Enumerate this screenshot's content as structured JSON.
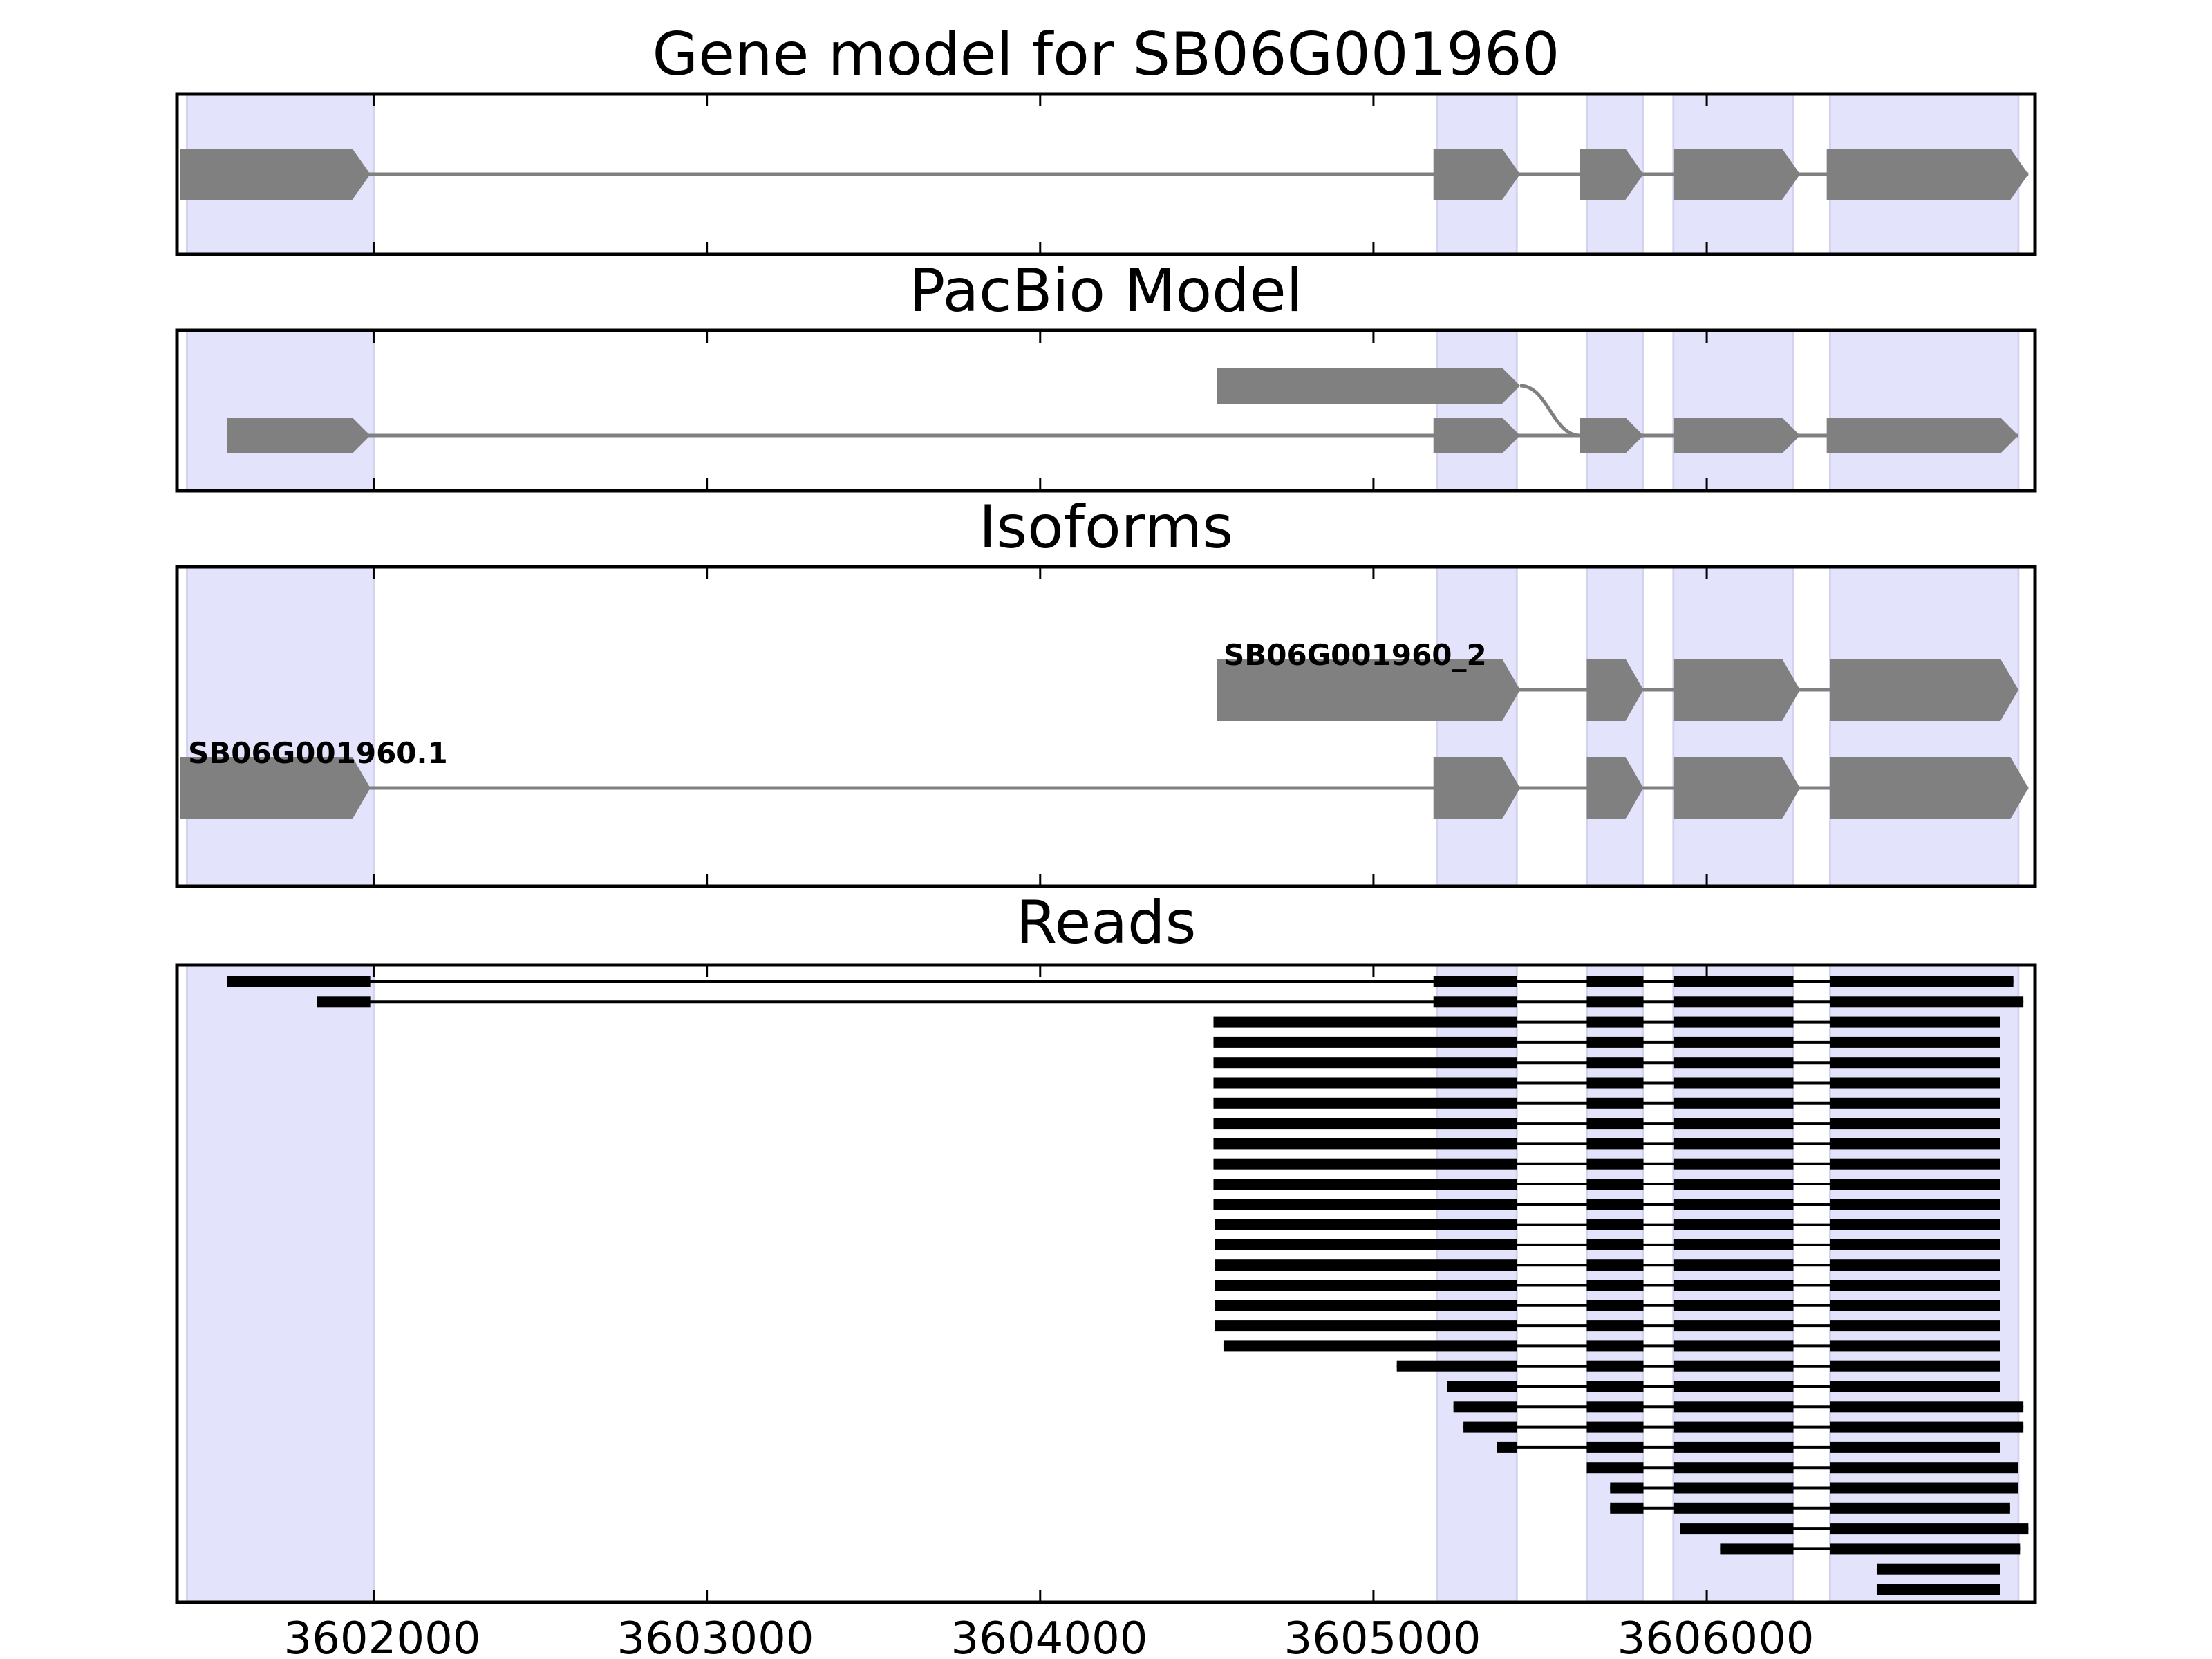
{
  "chart_data": {
    "type": "gene-model",
    "x_range": [
      3601410,
      3606985
    ],
    "x_ticks": [
      3602000,
      3603000,
      3604000,
      3605000,
      3606000
    ],
    "x_tick_labels": [
      "3602000",
      "3603000",
      "3604000",
      "3605000",
      "3606000"
    ],
    "highlight_regions": [
      [
        3601440,
        3602000
      ],
      [
        3605190,
        3605430
      ],
      [
        3605640,
        3605810
      ],
      [
        3605900,
        3606260
      ],
      [
        3606370,
        3606935
      ]
    ],
    "colors": {
      "highlight": "#e3e3fb",
      "model": "#808080",
      "reads": "#000000"
    },
    "panels": {
      "gene_model": {
        "title": "Gene model for SB06G001960",
        "exons": [
          [
            3601420,
            3601990
          ],
          [
            3605180,
            3605440
          ],
          [
            3605620,
            3605810
          ],
          [
            3605900,
            3606280
          ],
          [
            3606360,
            3606965
          ]
        ]
      },
      "pacbio_model": {
        "title": "PacBio Model",
        "isoforms": [
          {
            "exons": [
              [
                3601560,
                3601990
              ],
              [
                3605180,
                3605440
              ],
              [
                3605620,
                3605810
              ],
              [
                3605900,
                3606280
              ],
              [
                3606360,
                3606935
              ]
            ]
          },
          {
            "exons": [
              [
                3604530,
                3605440
              ]
            ],
            "joins_to_exon": 2
          }
        ]
      },
      "isoforms": {
        "title": "Isoforms",
        "isoforms": [
          {
            "name": "SB06G001960_2",
            "exons": [
              [
                3604530,
                3605440
              ],
              [
                3605640,
                3605810
              ],
              [
                3605900,
                3606280
              ],
              [
                3606370,
                3606935
              ]
            ]
          },
          {
            "name": "SB06G001960.1",
            "exons": [
              [
                3601420,
                3601990
              ],
              [
                3605180,
                3605440
              ],
              [
                3605640,
                3605810
              ],
              [
                3605900,
                3606280
              ],
              [
                3606370,
                3606965
              ]
            ]
          }
        ]
      },
      "reads": {
        "title": "Reads",
        "reads": [
          [
            [
              3601560,
              3601990
            ],
            [
              3605180,
              3605430
            ],
            [
              3605640,
              3605810
            ],
            [
              3605900,
              3606260
            ],
            [
              3606370,
              3606920
            ]
          ],
          [
            [
              3601830,
              3601990
            ],
            [
              3605180,
              3605430
            ],
            [
              3605640,
              3605810
            ],
            [
              3605900,
              3606260
            ],
            [
              3606370,
              3606950
            ]
          ],
          [
            [
              3604520,
              3605430
            ],
            [
              3605640,
              3605810
            ],
            [
              3605900,
              3606260
            ],
            [
              3606370,
              3606880
            ]
          ],
          [
            [
              3604520,
              3605430
            ],
            [
              3605640,
              3605810
            ],
            [
              3605900,
              3606260
            ],
            [
              3606370,
              3606880
            ]
          ],
          [
            [
              3604520,
              3605430
            ],
            [
              3605640,
              3605810
            ],
            [
              3605900,
              3606260
            ],
            [
              3606370,
              3606880
            ]
          ],
          [
            [
              3604520,
              3605430
            ],
            [
              3605640,
              3605810
            ],
            [
              3605900,
              3606260
            ],
            [
              3606370,
              3606880
            ]
          ],
          [
            [
              3604520,
              3605430
            ],
            [
              3605640,
              3605810
            ],
            [
              3605900,
              3606260
            ],
            [
              3606370,
              3606880
            ]
          ],
          [
            [
              3604520,
              3605430
            ],
            [
              3605640,
              3605810
            ],
            [
              3605900,
              3606260
            ],
            [
              3606370,
              3606880
            ]
          ],
          [
            [
              3604520,
              3605430
            ],
            [
              3605640,
              3605810
            ],
            [
              3605900,
              3606260
            ],
            [
              3606370,
              3606880
            ]
          ],
          [
            [
              3604520,
              3605430
            ],
            [
              3605640,
              3605810
            ],
            [
              3605900,
              3606260
            ],
            [
              3606370,
              3606880
            ]
          ],
          [
            [
              3604520,
              3605430
            ],
            [
              3605640,
              3605810
            ],
            [
              3605900,
              3606260
            ],
            [
              3606370,
              3606880
            ]
          ],
          [
            [
              3604520,
              3605430
            ],
            [
              3605640,
              3605810
            ],
            [
              3605900,
              3606260
            ],
            [
              3606370,
              3606880
            ]
          ],
          [
            [
              3604525,
              3605430
            ],
            [
              3605640,
              3605810
            ],
            [
              3605900,
              3606260
            ],
            [
              3606370,
              3606880
            ]
          ],
          [
            [
              3604525,
              3605430
            ],
            [
              3605640,
              3605810
            ],
            [
              3605900,
              3606260
            ],
            [
              3606370,
              3606880
            ]
          ],
          [
            [
              3604525,
              3605430
            ],
            [
              3605640,
              3605810
            ],
            [
              3605900,
              3606260
            ],
            [
              3606370,
              3606880
            ]
          ],
          [
            [
              3604525,
              3605430
            ],
            [
              3605640,
              3605810
            ],
            [
              3605900,
              3606260
            ],
            [
              3606370,
              3606880
            ]
          ],
          [
            [
              3604525,
              3605430
            ],
            [
              3605640,
              3605810
            ],
            [
              3605900,
              3606260
            ],
            [
              3606370,
              3606880
            ]
          ],
          [
            [
              3604525,
              3605430
            ],
            [
              3605640,
              3605810
            ],
            [
              3605900,
              3606260
            ],
            [
              3606370,
              3606880
            ]
          ],
          [
            [
              3604550,
              3605430
            ],
            [
              3605640,
              3605810
            ],
            [
              3605900,
              3606260
            ],
            [
              3606370,
              3606880
            ]
          ],
          [
            [
              3605070,
              3605430
            ],
            [
              3605640,
              3605810
            ],
            [
              3605900,
              3606260
            ],
            [
              3606370,
              3606880
            ]
          ],
          [
            [
              3605220,
              3605430
            ],
            [
              3605640,
              3605810
            ],
            [
              3605900,
              3606260
            ],
            [
              3606370,
              3606880
            ]
          ],
          [
            [
              3605240,
              3605430
            ],
            [
              3605640,
              3605810
            ],
            [
              3605900,
              3606260
            ],
            [
              3606370,
              3606950
            ]
          ],
          [
            [
              3605270,
              3605430
            ],
            [
              3605640,
              3605810
            ],
            [
              3605900,
              3606260
            ],
            [
              3606370,
              3606950
            ]
          ],
          [
            [
              3605370,
              3605430
            ],
            [
              3605640,
              3605810
            ],
            [
              3605900,
              3606260
            ],
            [
              3606370,
              3606880
            ]
          ],
          [
            [
              3605640,
              3605810
            ],
            [
              3605900,
              3606260
            ],
            [
              3606370,
              3606935
            ]
          ],
          [
            [
              3605710,
              3605810
            ],
            [
              3605900,
              3606260
            ],
            [
              3606370,
              3606935
            ]
          ],
          [
            [
              3605710,
              3605810
            ],
            [
              3605900,
              3606260
            ],
            [
              3606370,
              3606910
            ]
          ],
          [
            [
              3605920,
              3606260
            ],
            [
              3606370,
              3606965
            ]
          ],
          [
            [
              3606040,
              3606260
            ],
            [
              3606370,
              3606940
            ]
          ],
          [
            [
              3606510,
              3606880
            ]
          ],
          [
            [
              3606510,
              3606880
            ]
          ]
        ]
      }
    }
  }
}
